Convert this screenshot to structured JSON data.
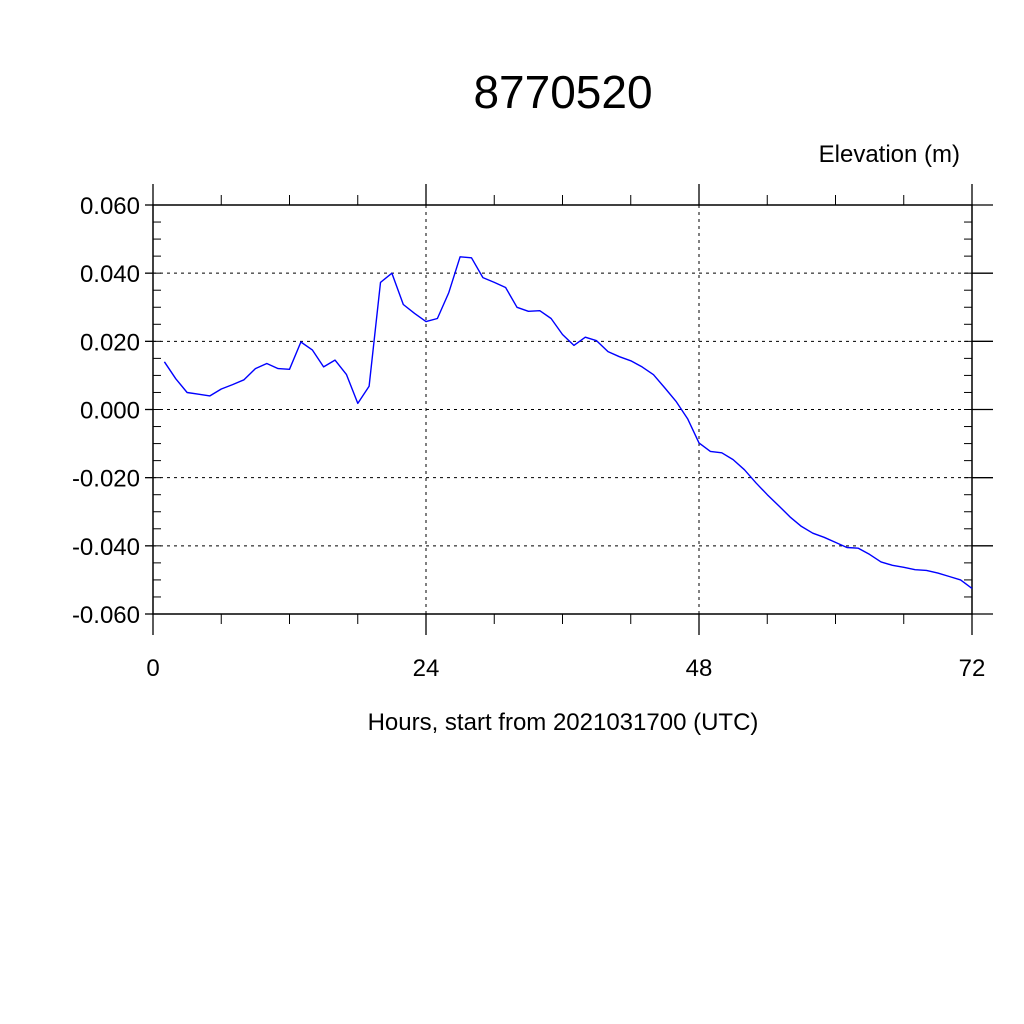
{
  "chart_data": {
    "type": "line",
    "title": "8770520",
    "ylabel": "Elevation (m)",
    "xlabel": "Hours, start from 2021031700 (UTC)",
    "xlim": [
      0,
      72
    ],
    "ylim": [
      -0.06,
      0.06
    ],
    "x_ticks": [
      0,
      24,
      48,
      72
    ],
    "x_tick_labels": [
      "0",
      "24",
      "48",
      "72"
    ],
    "y_ticks": [
      0.06,
      0.04,
      0.02,
      0.0,
      -0.02,
      -0.04,
      -0.06
    ],
    "y_tick_labels": [
      "0.060",
      "0.040",
      "0.020",
      "0.000",
      "-0.020",
      "-0.040",
      "-0.060"
    ],
    "grid": "dashed",
    "line_color": "#0000ff",
    "series": [
      {
        "x": [
          1,
          2,
          3,
          4,
          5,
          6,
          7,
          8,
          9,
          10,
          11,
          12,
          13,
          14,
          15,
          16,
          17,
          18,
          19,
          20,
          21,
          22,
          23,
          24,
          25,
          26,
          27,
          28,
          29,
          30,
          31,
          32,
          33,
          34,
          35,
          36,
          37,
          38,
          39,
          40,
          41,
          42,
          43,
          44,
          45,
          46,
          47,
          48,
          49,
          50,
          51,
          52,
          53,
          54,
          55,
          56,
          57,
          58,
          59,
          60,
          61,
          62,
          63,
          64,
          65,
          66,
          67,
          68,
          69,
          70,
          71,
          72
        ],
        "values": [
          0.014,
          0.009,
          0.005,
          0.0045,
          0.004,
          0.006,
          0.0073,
          0.0087,
          0.012,
          0.0135,
          0.012,
          0.0118,
          0.0198,
          0.0175,
          0.0125,
          0.0145,
          0.0103,
          0.0018,
          0.0068,
          0.0373,
          0.04,
          0.0308,
          0.0282,
          0.0258,
          0.0267,
          0.0343,
          0.0448,
          0.0445,
          0.0387,
          0.0373,
          0.0358,
          0.03,
          0.0288,
          0.029,
          0.0267,
          0.022,
          0.0188,
          0.0212,
          0.0202,
          0.017,
          0.0155,
          0.0143,
          0.0125,
          0.0102,
          0.0063,
          0.0023,
          -0.0027,
          -0.0098,
          -0.0123,
          -0.0127,
          -0.0147,
          -0.0177,
          -0.0215,
          -0.025,
          -0.0282,
          -0.0315,
          -0.0343,
          -0.0363,
          -0.0375,
          -0.039,
          -0.0405,
          -0.0407,
          -0.0425,
          -0.0447,
          -0.0457,
          -0.0463,
          -0.047,
          -0.0472,
          -0.048,
          -0.049,
          -0.05,
          -0.0525
        ]
      }
    ]
  }
}
